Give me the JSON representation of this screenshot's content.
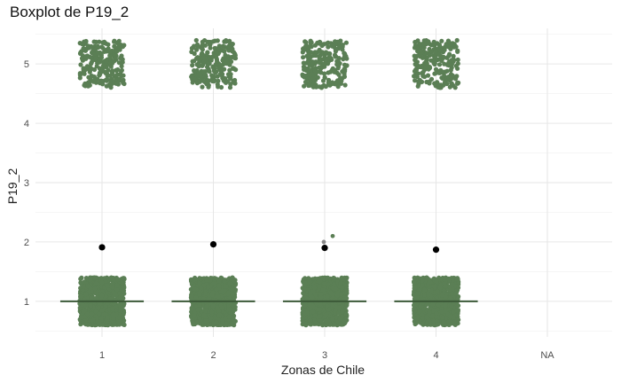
{
  "chart_data": {
    "type": "boxplot",
    "title": "Boxplot de P19_2",
    "xlabel": "Zonas de Chile",
    "ylabel": "P19_2",
    "categories": [
      "1",
      "2",
      "3",
      "4",
      "NA"
    ],
    "y_ticks": [
      1,
      2,
      3,
      4,
      5
    ],
    "ylim": [
      0.4,
      5.6
    ],
    "grid": true,
    "point_color": "#5b7f55",
    "median_color": "#3c5a38",
    "mean_color": "#000000",
    "groups": [
      {
        "category": "1",
        "median": 1,
        "mean": 1.91,
        "observed_values": [
          1,
          5
        ],
        "outliers": []
      },
      {
        "category": "2",
        "median": 1,
        "mean": 1.96,
        "observed_values": [
          1,
          5
        ],
        "outliers": []
      },
      {
        "category": "3",
        "median": 1,
        "mean": 1.9,
        "observed_values": [
          1,
          5
        ],
        "outliers": [
          2,
          2.1
        ]
      },
      {
        "category": "4",
        "median": 1,
        "mean": 1.87,
        "observed_values": [
          1,
          5
        ],
        "outliers": []
      },
      {
        "category": "NA",
        "median": null,
        "mean": null,
        "observed_values": [],
        "outliers": []
      }
    ]
  }
}
